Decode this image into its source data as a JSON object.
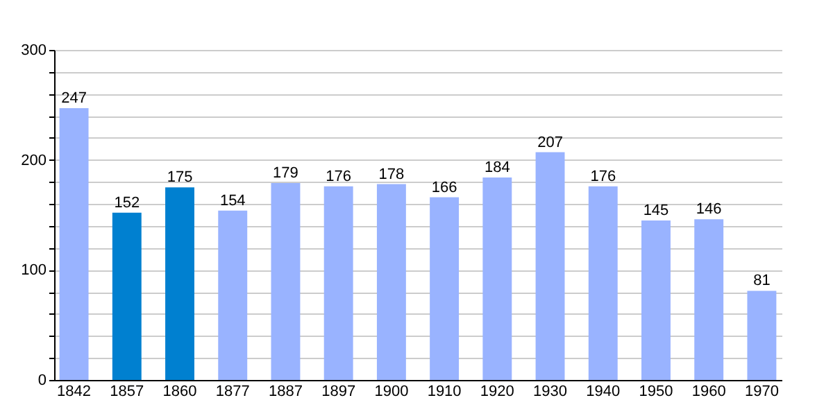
{
  "chart_data": {
    "type": "bar",
    "categories": [
      "1842",
      "1857",
      "1860",
      "1877",
      "1887",
      "1897",
      "1900",
      "1910",
      "1920",
      "1930",
      "1940",
      "1950",
      "1960",
      "1970"
    ],
    "values": [
      247,
      152,
      175,
      154,
      179,
      176,
      178,
      166,
      184,
      207,
      176,
      145,
      146,
      81
    ],
    "colors": [
      "#99b3ff",
      "#0080d0",
      "#0080d0",
      "#99b3ff",
      "#99b3ff",
      "#99b3ff",
      "#99b3ff",
      "#99b3ff",
      "#99b3ff",
      "#99b3ff",
      "#99b3ff",
      "#99b3ff",
      "#99b3ff",
      "#99b3ff"
    ],
    "ylim": [
      0,
      300
    ],
    "yticks": [
      0,
      {
        "value": 20,
        "label": null
      },
      {
        "value": 40,
        "label": null
      },
      {
        "value": 60,
        "label": null
      },
      {
        "value": 80,
        "label": null
      },
      100,
      {
        "value": 120,
        "label": null
      },
      {
        "value": 140,
        "label": null
      },
      {
        "value": 160,
        "label": null
      },
      {
        "value": 180,
        "label": null
      },
      200,
      {
        "value": 220,
        "label": null
      },
      {
        "value": 240,
        "label": null
      },
      {
        "value": 260,
        "label": null
      },
      {
        "value": 280,
        "label": null
      },
      300
    ],
    "grid": true,
    "data_labels": true,
    "legend": false
  }
}
